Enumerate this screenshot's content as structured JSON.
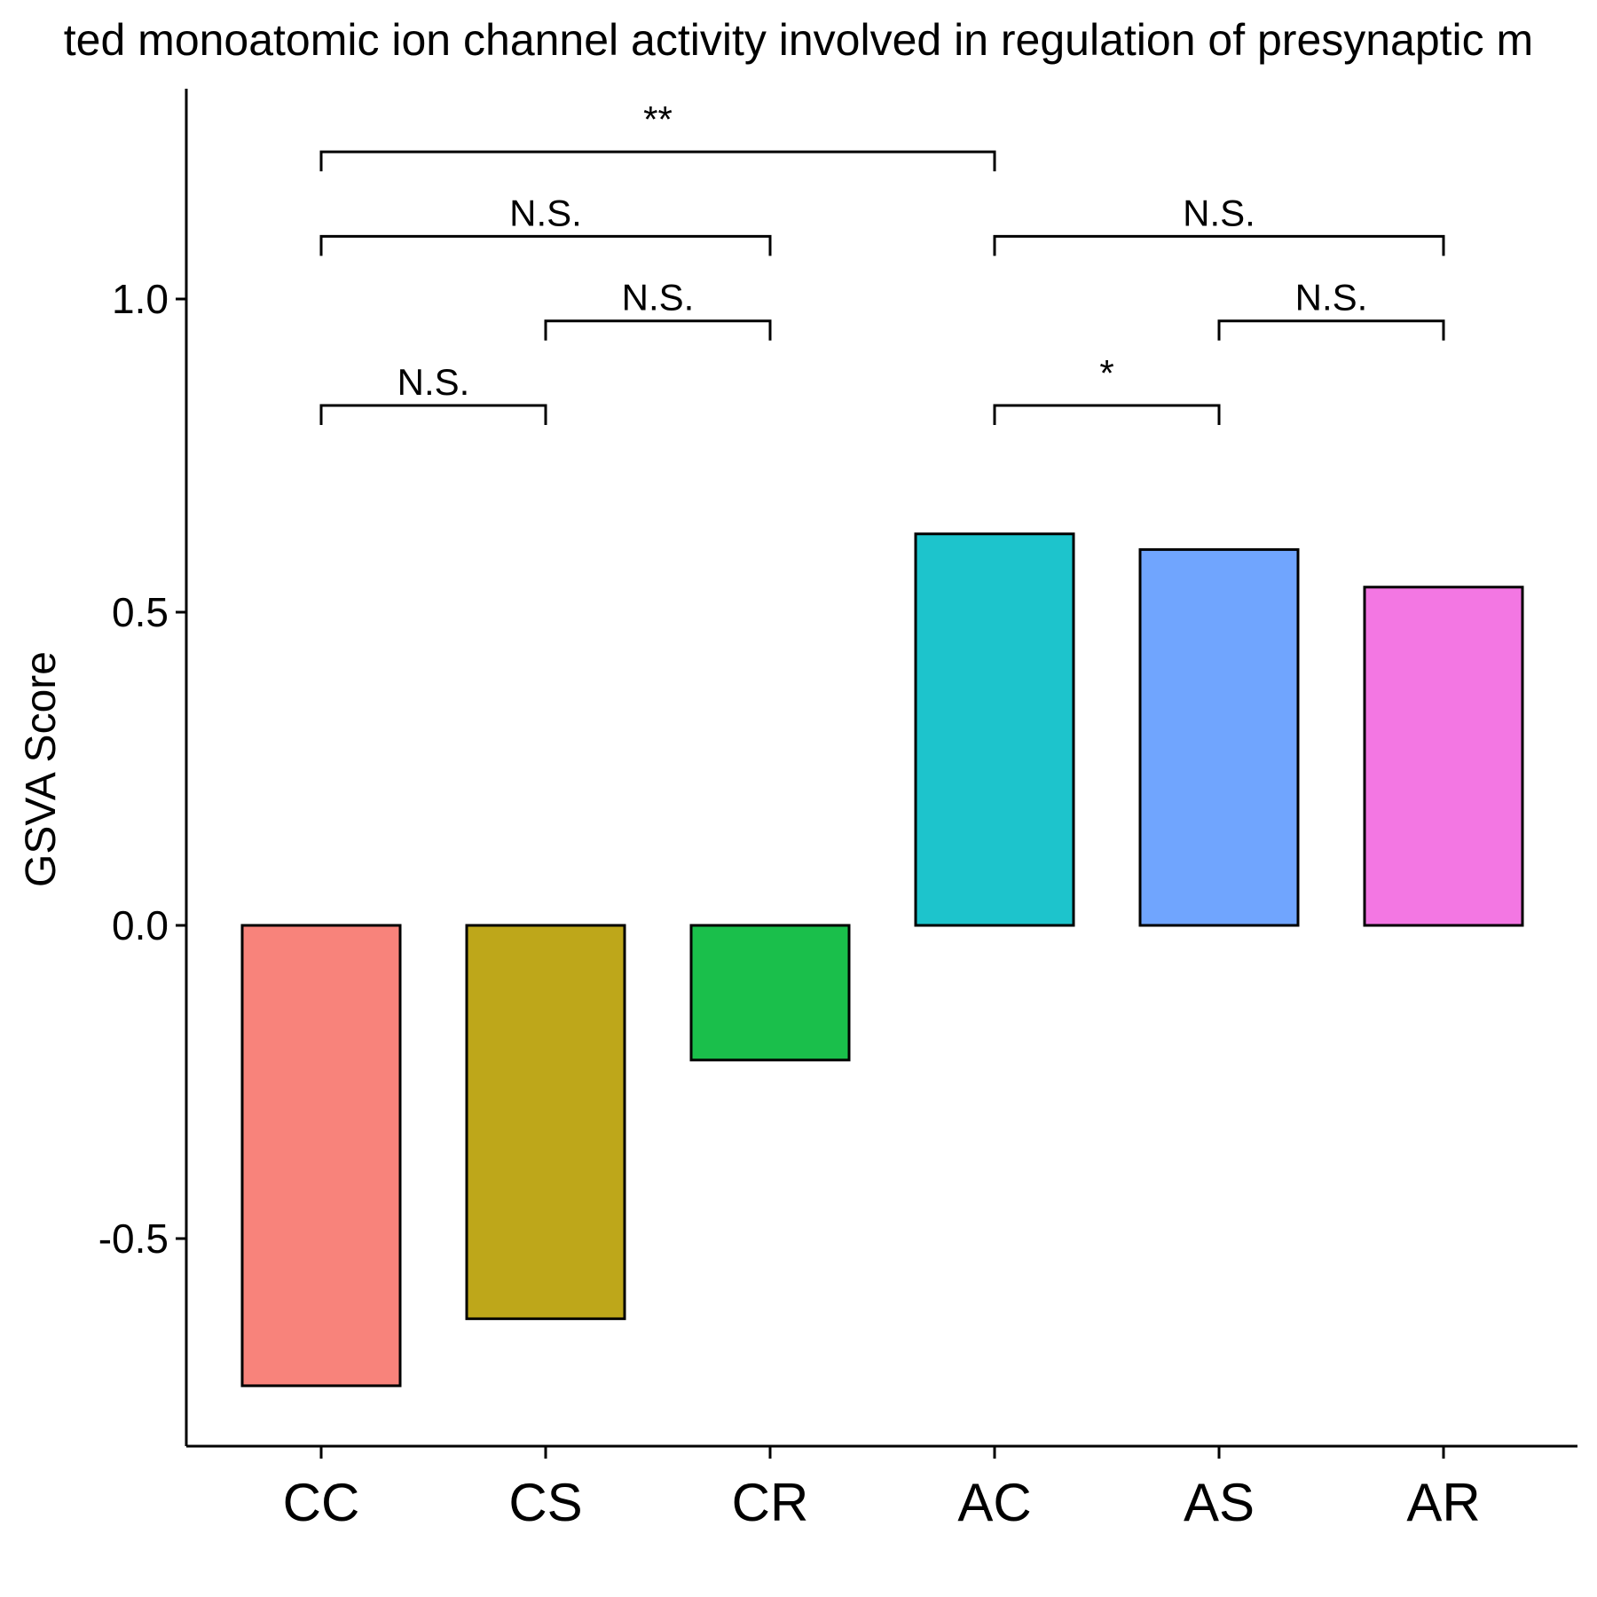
{
  "chart_data": {
    "type": "bar",
    "title": "ted monoatomic ion channel activity involved in regulation of presynaptic m",
    "xlabel": "",
    "ylabel": "GSVA Score",
    "ylim": [
      -0.83,
      1.33
    ],
    "yticks": [
      -0.5,
      0.0,
      0.5,
      1.0
    ],
    "ytick_labels": [
      "-0.5",
      "0.0",
      "0.5",
      "1.0"
    ],
    "categories": [
      "CC",
      "CS",
      "CR",
      "AC",
      "AS",
      "AR"
    ],
    "values": [
      -0.735,
      -0.628,
      -0.215,
      0.625,
      0.6,
      0.54
    ],
    "colors": [
      "#F8837B",
      "#BEA71A",
      "#1ABF4B",
      "#1DC4CC",
      "#70A5FE",
      "#F377E3"
    ],
    "grid": false,
    "legend": "none",
    "comparisons": [
      {
        "from": "CC",
        "to": "CS",
        "label": "N.S.",
        "y": 0.83
      },
      {
        "from": "CS",
        "to": "CR",
        "label": "N.S.",
        "y": 0.965
      },
      {
        "from": "CC",
        "to": "CR",
        "label": "N.S.",
        "y": 1.1
      },
      {
        "from": "CC",
        "to": "AC",
        "label": "**",
        "y": 1.235
      },
      {
        "from": "AC",
        "to": "AS",
        "label": "*",
        "y": 0.83
      },
      {
        "from": "AS",
        "to": "AR",
        "label": "N.S.",
        "y": 0.965
      },
      {
        "from": "AC",
        "to": "AR",
        "label": "N.S.",
        "y": 1.1
      }
    ]
  }
}
